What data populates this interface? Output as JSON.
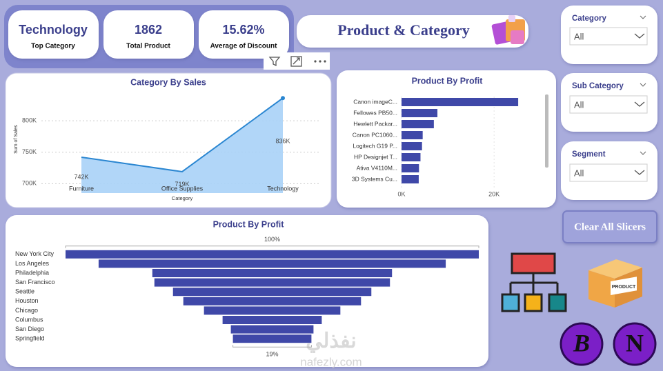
{
  "kpis": [
    {
      "value": "Technology",
      "label": "Top Category"
    },
    {
      "value": "1862",
      "label": "Total Product"
    },
    {
      "value": "15.62%",
      "label": "Average of Discount"
    }
  ],
  "header": {
    "title": "Product & Category"
  },
  "slicers": [
    {
      "label": "Category",
      "selection": "All"
    },
    {
      "label": "Sub Category",
      "selection": "All"
    },
    {
      "label": "Segment",
      "selection": "All"
    }
  ],
  "button": {
    "label": "Clear All Slicers"
  },
  "icons": {
    "box_label": "PRODUCT",
    "badge_1": "B",
    "badge_2": "N"
  },
  "watermark": {
    "arabic": "نفذلي",
    "site": "nafezly.com"
  },
  "chart_data": [
    {
      "type": "area",
      "title": "Category By Sales",
      "x_label": "Category",
      "y_label": "Sum of Sales",
      "categories": [
        "Furniture",
        "Office Supplies",
        "Technology"
      ],
      "values": [
        742000,
        719000,
        836000
      ],
      "value_labels": [
        "742K",
        "719K",
        "836K"
      ],
      "ylim": [
        685000,
        845000
      ],
      "yticks": [
        {
          "value": 700000,
          "label": "700K"
        },
        {
          "value": 750000,
          "label": "750K"
        },
        {
          "value": 800000,
          "label": "800K"
        }
      ],
      "color": "#2a86d1",
      "fill": "#a8d1f7",
      "grid": true
    },
    {
      "type": "hbar",
      "title": "Product By Profit",
      "categories": [
        "Canon imageC...",
        "Fellowes PB50...",
        "Hewlett Packar...",
        "Canon PC1060...",
        "Logitech G19 P...",
        "HP Designjet T...",
        "Ativa V4110M...",
        "3D Systems Cu..."
      ],
      "values": [
        25200,
        7753,
        6983,
        4570,
        4425,
        4094,
        3772,
        3717
      ],
      "xlim": [
        0,
        31000
      ],
      "xticks": [
        {
          "value": 0,
          "label": "0K"
        },
        {
          "value": 20000,
          "label": "20K"
        }
      ],
      "color": "#3f48a8"
    },
    {
      "type": "funnel",
      "title": "Product By Profit",
      "categories": [
        "New York City",
        "Los Angeles",
        "Philadelphia",
        "San Francisco",
        "Seattle",
        "Houston",
        "Chicago",
        "Columbus",
        "San Diego",
        "Springfield"
      ],
      "values": [
        100,
        84,
        58,
        57,
        48,
        43,
        33,
        24,
        20,
        19
      ],
      "value_labels": [
        "100%",
        null,
        null,
        null,
        null,
        null,
        null,
        null,
        null,
        "19%"
      ],
      "color": "#3f48a8"
    }
  ]
}
